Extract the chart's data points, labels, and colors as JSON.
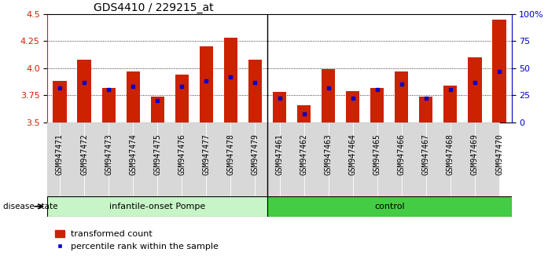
{
  "title": "GDS4410 / 229215_at",
  "samples": [
    "GSM947471",
    "GSM947472",
    "GSM947473",
    "GSM947474",
    "GSM947475",
    "GSM947476",
    "GSM947477",
    "GSM947478",
    "GSM947479",
    "GSM947461",
    "GSM947462",
    "GSM947463",
    "GSM947464",
    "GSM947465",
    "GSM947466",
    "GSM947467",
    "GSM947468",
    "GSM947469",
    "GSM947470"
  ],
  "transformed_count": [
    3.88,
    4.08,
    3.82,
    3.97,
    3.74,
    3.94,
    4.2,
    4.28,
    4.08,
    3.78,
    3.66,
    3.99,
    3.79,
    3.82,
    3.97,
    3.74,
    3.84,
    4.1,
    4.45
  ],
  "percentile_rank": [
    32,
    37,
    30,
    33,
    20,
    33,
    38,
    42,
    37,
    22,
    8,
    32,
    22,
    30,
    35,
    22,
    30,
    37,
    47
  ],
  "group_labels": [
    "infantile-onset Pompe",
    "control"
  ],
  "group_counts": [
    9,
    10
  ],
  "ylim_left": [
    3.5,
    4.5
  ],
  "ylim_right": [
    0,
    100
  ],
  "yticks_left": [
    3.5,
    3.75,
    4.0,
    4.25,
    4.5
  ],
  "yticks_right": [
    0,
    25,
    50,
    75,
    100
  ],
  "ytick_labels_right": [
    "0",
    "25",
    "50",
    "75",
    "100%"
  ],
  "bar_color": "#cc2200",
  "marker_color": "#0000cc",
  "group1_color": "#c8f5c8",
  "group2_color": "#44cc44",
  "legend_items": [
    "transformed count",
    "percentile rank within the sample"
  ],
  "title_fontsize": 10,
  "tick_fontsize": 7
}
